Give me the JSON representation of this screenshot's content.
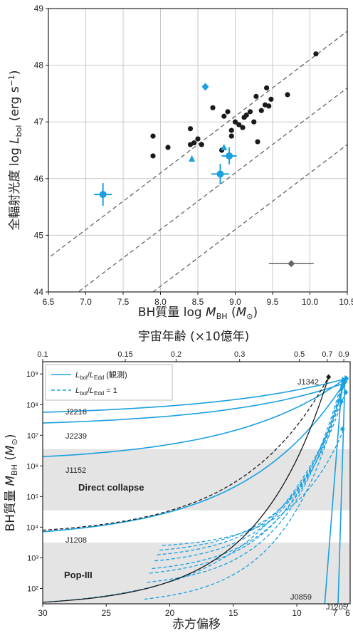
{
  "chart_data": [
    {
      "type": "scatter",
      "xlabel": "BH質量 log M_BH (M☉)",
      "ylabel": "全輻射光度 log L_bol (erg s⁻¹)",
      "xlabel_parts": {
        "pre": "BH質量  log ",
        "var": "M",
        "sub": "BH",
        "mid": " (",
        "var2": "M",
        "sub2": "⊙",
        "post": ")"
      },
      "ylabel_parts": {
        "pre": "全輻射光度  log ",
        "var": "L",
        "sub": "bol",
        "mid": " (erg s",
        "sup": "−1",
        "post": ")"
      },
      "xlim": [
        6.5,
        10.5
      ],
      "ylim": [
        44,
        49
      ],
      "xticks": [
        "6.5",
        "7.0",
        "7.5",
        "8.0",
        "8.5",
        "9.0",
        "9.5",
        "10.0",
        "10.5"
      ],
      "yticks": [
        "44",
        "45",
        "46",
        "47",
        "48",
        "49"
      ],
      "grid": true,
      "diagonal_lines_intercepts": [
        38.1,
        37.1,
        36.1
      ],
      "black_points": [
        [
          7.9,
          46.75
        ],
        [
          7.9,
          46.4
        ],
        [
          8.1,
          46.55
        ],
        [
          8.4,
          46.88
        ],
        [
          8.4,
          46.6
        ],
        [
          8.45,
          46.63
        ],
        [
          8.5,
          46.7
        ],
        [
          8.55,
          46.6
        ],
        [
          8.7,
          47.25
        ],
        [
          8.82,
          46.5
        ],
        [
          8.85,
          47.1
        ],
        [
          8.9,
          47.18
        ],
        [
          8.95,
          46.85
        ],
        [
          8.95,
          46.75
        ],
        [
          9.0,
          47.0
        ],
        [
          9.05,
          46.95
        ],
        [
          9.1,
          46.9
        ],
        [
          9.12,
          47.08
        ],
        [
          9.15,
          47.12
        ],
        [
          9.2,
          47.18
        ],
        [
          9.25,
          47.0
        ],
        [
          9.28,
          47.45
        ],
        [
          9.3,
          46.65
        ],
        [
          9.35,
          47.2
        ],
        [
          9.4,
          47.3
        ],
        [
          9.42,
          47.6
        ],
        [
          9.45,
          47.28
        ],
        [
          9.48,
          47.4
        ],
        [
          9.7,
          47.48
        ],
        [
          10.08,
          48.2
        ]
      ],
      "blue_points": [
        {
          "x": 7.23,
          "y": 45.72,
          "xerr": 0.12,
          "yerr": 0.2,
          "marker": "o"
        },
        {
          "x": 8.42,
          "y": 46.35,
          "xerr": 0,
          "yerr": 0,
          "marker": "^"
        },
        {
          "x": 8.6,
          "y": 47.62,
          "xerr": 0,
          "yerr": 0,
          "marker": "D"
        },
        {
          "x": 8.8,
          "y": 46.08,
          "xerr": 0.12,
          "yerr": 0.18,
          "marker": "o"
        },
        {
          "x": 8.85,
          "y": 46.55,
          "xerr": 0,
          "yerr": 0,
          "marker": "^"
        },
        {
          "x": 8.92,
          "y": 46.4,
          "xerr": 0.1,
          "yerr": 0.15,
          "marker": "o"
        }
      ],
      "reference_point": {
        "x": 9.75,
        "y": 44.5,
        "xerr": 0.3
      }
    },
    {
      "type": "line",
      "xlabel": "赤方偏移",
      "ylabel": "BH質量 M_BH (M☉)",
      "ylabel_parts": {
        "pre": "BH質量 ",
        "var": "M",
        "sub": "BH",
        "mid": " (",
        "var2": "M",
        "sub2": "⊙",
        "post": ")"
      },
      "top_xlabel": "宇宙年齢 (×10億年)",
      "xlim": [
        30,
        5.8
      ],
      "ylim_log10": [
        1.5,
        9.4
      ],
      "xticks": [
        "30",
        "25",
        "20",
        "15",
        "10",
        "7",
        "6"
      ],
      "xtick_values": [
        30,
        25,
        20,
        15,
        10,
        7,
        6
      ],
      "top_ticks": [
        {
          "label": "0.1",
          "z": 30
        },
        {
          "label": "0.15",
          "z": 23.5
        },
        {
          "label": "0.2",
          "z": 19.5
        },
        {
          "label": "0.3",
          "z": 14.5
        },
        {
          "label": "0.5",
          "z": 9.8
        },
        {
          "label": "0.7",
          "z": 7.6
        },
        {
          "label": "0.9",
          "z": 6.3
        }
      ],
      "yticks": [
        "10²",
        "10³",
        "10⁴",
        "10⁵",
        "10⁶",
        "10⁷",
        "10⁸",
        "10⁹"
      ],
      "ytick_exp": [
        2,
        3,
        4,
        5,
        6,
        7,
        8,
        9
      ],
      "legend": {
        "solid_parts": {
          "var": "L",
          "sub": "bol",
          "slash": "/",
          "var2": "L",
          "sub2": "Edd",
          "post": " (観測)"
        },
        "dashed_parts": {
          "var": "L",
          "sub": "bol",
          "slash": "/",
          "var2": "L",
          "sub2": "Edd",
          "post": " = 1"
        }
      },
      "shaded_regions": [
        {
          "label": "Direct collapse",
          "log_range": [
            4.55,
            6.55
          ]
        },
        {
          "label": "Pop-III",
          "log_range": [
            1.5,
            3.5
          ]
        }
      ],
      "labels": {
        "J2216": "J2216",
        "J2239": "J2239",
        "J1152": "J1152",
        "J1208": "J1208",
        "J1342": "J1342",
        "J0859": "J0859",
        "J1205": "J1205"
      },
      "observed_tracks": [
        {
          "name": "J2216",
          "z0": 30,
          "logM0": 7.75,
          "z1": 6.1,
          "logM1": 8.85
        },
        {
          "name": "J2239",
          "z0": 30,
          "logM0": 7.4,
          "z1": 6.25,
          "logM1": 8.7
        },
        {
          "name": "J1152",
          "z0": 30,
          "logM0": 6.3,
          "z1": 6.35,
          "logM1": 8.8
        },
        {
          "name": "J1208",
          "z0": 30,
          "logM0": 3.85,
          "z1": 6.2,
          "logM1": 8.75
        }
      ],
      "steep_tracks": [
        {
          "name": "J0859",
          "z0": 6.4,
          "logM0": 8.9,
          "z1": 7.8,
          "logM1": 1.5
        },
        {
          "name": "J1205",
          "z0": 6.2,
          "logM0": 8.95,
          "z1": 6.75,
          "logM1": 1.5
        }
      ],
      "eddington_tracks_final_logM": [
        8.9,
        8.85,
        8.8,
        8.75,
        8.7,
        8.5,
        8.4,
        7.2
      ],
      "eddington_tracks_start_logM": [
        1.65,
        2.2,
        2.5,
        2.65,
        2.9,
        3.1,
        3.25,
        3.4
      ]
    }
  ],
  "colors": {
    "blue": "#1aa0e0",
    "black": "#1a1a1a",
    "grid": "#c8c8c8",
    "shade": "#e4e4e4",
    "dash": "#666666",
    "ref": "#666666"
  }
}
